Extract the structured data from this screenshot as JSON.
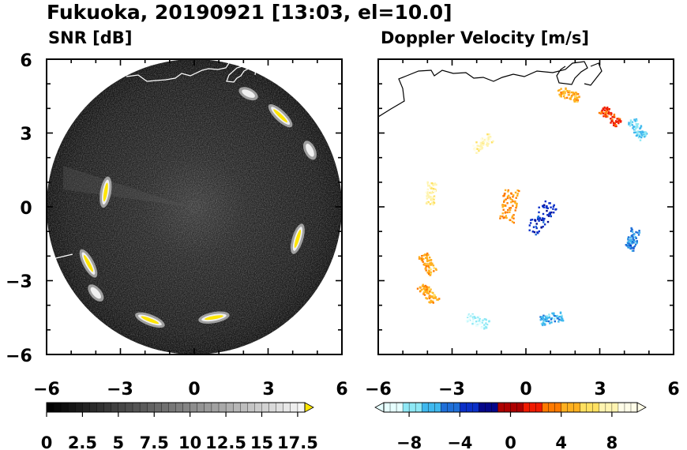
{
  "title": "Fukuoka, 20190921 [13:03, el=10.0]",
  "chart_data": [
    {
      "type": "heatmap",
      "title": "SNR [dB]",
      "xlim": [
        -6,
        6
      ],
      "ylim": [
        -6,
        6
      ],
      "xticks": [
        "−6",
        "−3",
        "0",
        "3",
        "6"
      ],
      "yticks": [
        "6",
        "3",
        "0",
        "−3",
        "−6"
      ],
      "range_km": 6,
      "colorbar": {
        "min": 0,
        "max": 18,
        "step": 0.5,
        "extend": "max",
        "tick_labels": [
          "0",
          "2.5",
          "5",
          "7.5",
          "10",
          "12.5",
          "15",
          "17.5"
        ],
        "tick_values": [
          0,
          2.5,
          5,
          7.5,
          10,
          12.5,
          15,
          17.5
        ],
        "colors": {
          "low": "#000000",
          "high": "#f5f5f5",
          "extend": "#ffe600"
        }
      },
      "echoes": [
        {
          "x": -3.6,
          "y": 0.6,
          "strength": "strong"
        },
        {
          "x": -4.3,
          "y": -2.3,
          "strength": "strong"
        },
        {
          "x": -4.0,
          "y": -3.5,
          "strength": "moderate"
        },
        {
          "x": -1.8,
          "y": -4.6,
          "strength": "strong"
        },
        {
          "x": 0.8,
          "y": -4.5,
          "strength": "strong"
        },
        {
          "x": 4.2,
          "y": -1.3,
          "strength": "strong"
        },
        {
          "x": 3.5,
          "y": 3.7,
          "strength": "strong"
        },
        {
          "x": 2.2,
          "y": 4.6,
          "strength": "moderate"
        },
        {
          "x": 4.7,
          "y": 2.3,
          "strength": "moderate"
        }
      ]
    },
    {
      "type": "heatmap",
      "title": "Doppler Velocity [m/s]",
      "xlim": [
        -6,
        6
      ],
      "ylim": [
        -6,
        6
      ],
      "xticks": [
        "−6",
        "−3",
        "0",
        "3",
        "6"
      ],
      "range_km": 6,
      "colorbar": {
        "min": -10,
        "max": 10,
        "extend": "both",
        "tick_labels": [
          "−8",
          "−4",
          "0",
          "4",
          "8"
        ],
        "tick_values": [
          -8,
          -4,
          0,
          4,
          8
        ],
        "colors": [
          "#e6ffff",
          "#8ee8f5",
          "#3fb8ee",
          "#1f6fd8",
          "#0a2fc8",
          "#04068a",
          "#ad0000",
          "#f01a00",
          "#ff7a00",
          "#ffb020",
          "#ffe060",
          "#fff4b0",
          "#fffde8"
        ]
      },
      "echoes": [
        {
          "x": -3.9,
          "y": 0.6,
          "v": 7.5
        },
        {
          "x": -4.0,
          "y": -2.3,
          "v": 4.5
        },
        {
          "x": -4.0,
          "y": -3.5,
          "v": 4.5
        },
        {
          "x": -2.0,
          "y": -4.6,
          "v": -8.5
        },
        {
          "x": 1.0,
          "y": -4.5,
          "v": -6
        },
        {
          "x": 4.3,
          "y": -1.3,
          "v": -5
        },
        {
          "x": 3.4,
          "y": 3.7,
          "v": 2
        },
        {
          "x": 1.7,
          "y": 4.6,
          "v": 4.5
        },
        {
          "x": 4.5,
          "y": 3.2,
          "v": -7
        },
        {
          "x": -0.7,
          "y": 0.1,
          "v": 4
        },
        {
          "x": 0.6,
          "y": -0.4,
          "v": -3
        },
        {
          "x": -1.8,
          "y": 2.6,
          "v": 8
        }
      ]
    }
  ]
}
